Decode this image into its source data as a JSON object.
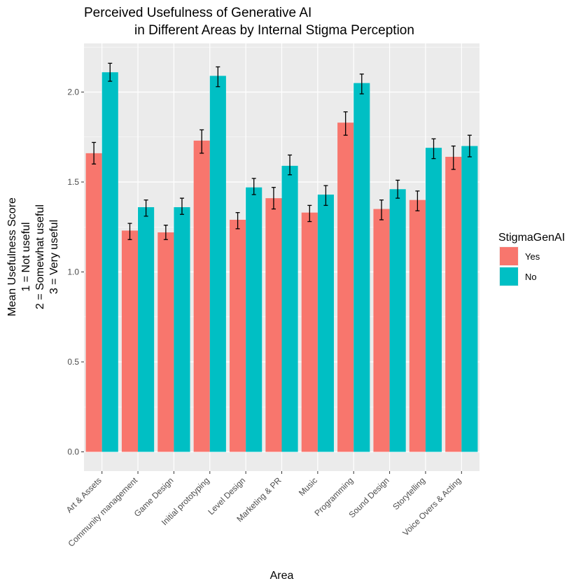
{
  "chart_data": {
    "type": "bar",
    "title": "Perceived Usefulness of Generative AI",
    "subtitle": "in Different Areas by Internal Stigma Perception",
    "xlabel": "Area",
    "ylabel_lines": [
      "Mean Usefulness Score",
      "1 = Not useful",
      "2 = Somewhat useful",
      "3 = Very useful"
    ],
    "categories": [
      "Art & Assets",
      "Community management",
      "Game Design",
      "Initial prototyping",
      "Level Design",
      "Marketing & PR",
      "Music",
      "Programming",
      "Sound Design",
      "Storytelling",
      "Voice Overs & Acting"
    ],
    "series": [
      {
        "name": "Yes",
        "color": "#F8766D",
        "values": [
          1.66,
          1.23,
          1.22,
          1.73,
          1.29,
          1.41,
          1.33,
          1.83,
          1.35,
          1.4,
          1.64
        ],
        "error_low": [
          1.6,
          1.18,
          1.18,
          1.66,
          1.24,
          1.35,
          1.28,
          1.76,
          1.29,
          1.34,
          1.57
        ],
        "error_high": [
          1.72,
          1.27,
          1.26,
          1.79,
          1.33,
          1.47,
          1.37,
          1.89,
          1.4,
          1.45,
          1.7
        ]
      },
      {
        "name": "No",
        "color": "#00BFC4",
        "values": [
          2.11,
          1.36,
          1.36,
          2.09,
          1.47,
          1.59,
          1.43,
          2.05,
          1.46,
          1.69,
          1.7
        ],
        "error_low": [
          2.06,
          1.31,
          1.32,
          2.03,
          1.43,
          1.54,
          1.37,
          1.99,
          1.41,
          1.63,
          1.64
        ],
        "error_high": [
          2.16,
          1.4,
          1.41,
          2.14,
          1.52,
          1.65,
          1.48,
          2.1,
          1.51,
          1.74,
          1.76
        ]
      }
    ],
    "ylim": [
      -0.1,
      2.25
    ],
    "yticks": [
      "0.0",
      "0.5",
      "1.0",
      "1.5",
      "2.0"
    ],
    "grid": true,
    "legend": {
      "title": "StigmaGenAI",
      "position": "right"
    },
    "background": "#EBEBEB",
    "grid_color": "#FFFFFF"
  }
}
